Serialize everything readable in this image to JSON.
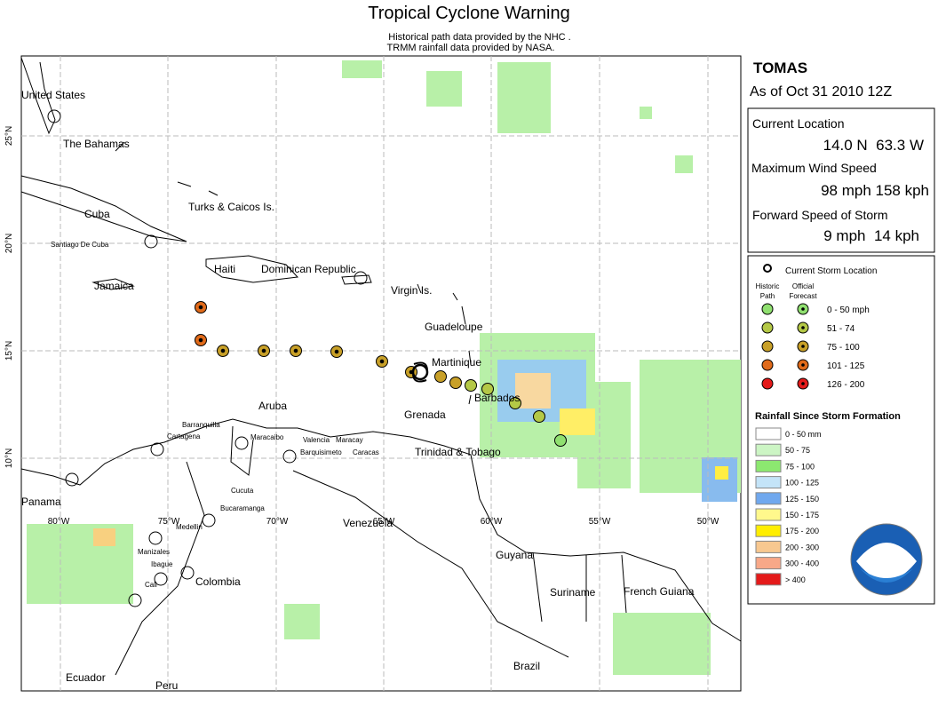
{
  "header": {
    "title": "Tropical Cyclone Warning",
    "credits": [
      "Historical path data provided by the NHC .",
      "TRMM rainfall data provided by NASA."
    ]
  },
  "map": {
    "lat_labels": [
      "25°N",
      "20°N",
      "15°N",
      "10°N"
    ],
    "lon_labels": [
      "80°W",
      "75°W",
      "70°W",
      "65°W",
      "60°W",
      "55°W",
      "50°W"
    ],
    "labels": [
      "United States",
      "The Bahamas",
      "Cuba",
      "Turks & Caicos Is.",
      "Santiago De Cuba",
      "Haiti",
      "Dominican Republic",
      "Jamaica",
      "Virgin Is.",
      "Guadeloupe",
      "Martinique",
      "Barbados",
      "Aruba",
      "Grenada",
      "Barranquilla",
      "Cartagena",
      "Maracaibo",
      "Valencia",
      "Maracay",
      "Barquisimeto",
      "Caracas",
      "Trinidad & Tobago",
      "Panama",
      "Cucuta",
      "Bucaramanga",
      "Medellin",
      "Manizales",
      "Ibague",
      "Cali",
      "Colombia",
      "Venezuela",
      "Guyana",
      "Suriname",
      "French Guiana",
      "Brazil",
      "Ecuador",
      "Peru"
    ]
  },
  "storm": {
    "name": "TOMAS",
    "as_of": "As of Oct 31 2010 12Z",
    "current_location_label": "Current Location",
    "current_location": "14.0 N  63.3 W",
    "max_wind_label": "Maximum Wind Speed",
    "max_wind": "98 mph 158 kph",
    "forward_speed_label": "Forward Speed of Storm",
    "forward_speed": "9 mph  14 kph"
  },
  "legend": {
    "current_storm_location": "Current Storm Location",
    "historic_path": [
      "Historic",
      "Path"
    ],
    "official_forecast": [
      "Official",
      "Forecast"
    ],
    "wind_classes": [
      "0 - 50 mph",
      "51 - 74",
      "75 - 100",
      "101 - 125",
      "126 - 200"
    ],
    "rainfall_title": "Rainfall Since Storm Formation",
    "rainfall_classes": [
      "0 - 50 mm",
      "50 - 75",
      "75 - 100",
      "100 - 125",
      "125 - 150",
      "150 - 175",
      "175 - 200",
      "200 - 300",
      "300 - 400",
      "> 400"
    ]
  }
}
